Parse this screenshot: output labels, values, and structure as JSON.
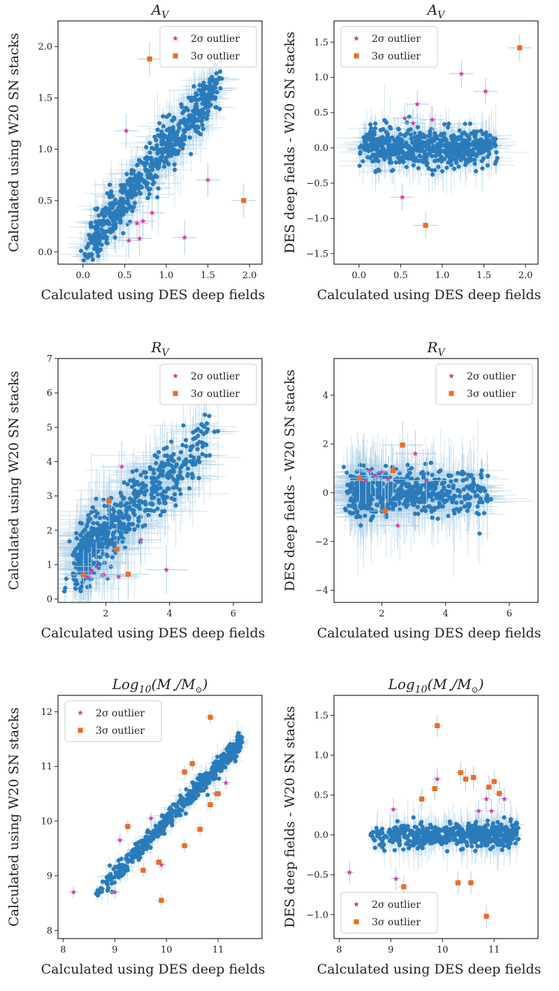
{
  "colors": {
    "blue": "#2b7bba",
    "errorbar": "#a9cde6",
    "outlier2": "#d63fa6",
    "outlier3": "#ef6c1f",
    "axes": "#222222"
  },
  "legend_entries": [
    {
      "marker": "star",
      "label": "2σ outlier"
    },
    {
      "marker": "square",
      "label": "3σ outlier"
    }
  ],
  "chart_data": [
    {
      "type": "scatter",
      "title": "A_V",
      "xlabel": "Calculated using DES deep fields",
      "ylabel": "Calculated using W20 SN stacks",
      "xlim": [
        -0.3,
        2.15
      ],
      "ylim": [
        -0.12,
        2.25
      ],
      "xticks": [
        0.0,
        0.5,
        1.0,
        1.5,
        2.0
      ],
      "xtick_labels": [
        "0.0",
        "0.5",
        "1.0",
        "1.5",
        "2.0"
      ],
      "yticks": [
        0.0,
        0.5,
        1.0,
        1.5,
        2.0
      ],
      "ytick_labels": [
        "0.0",
        "0.5",
        "1.0",
        "1.5",
        "2.0"
      ],
      "legend_position": "top-right",
      "cloud": {
        "mode": "diag",
        "n": 650,
        "xmin": 0.05,
        "xmax": 1.6,
        "shape": 1.0,
        "slope": 1.0,
        "intercept": 0.0,
        "scatter": 0.12,
        "xerr": 0.12,
        "yerr": 0.14,
        "seed": 11
      },
      "outliers_2sigma": [
        [
          0.52,
          1.18
        ],
        [
          0.83,
          0.38
        ],
        [
          1.5,
          0.7
        ],
        [
          0.68,
          0.13
        ],
        [
          0.55,
          0.11
        ],
        [
          1.22,
          0.14
        ],
        [
          0.65,
          0.28
        ],
        [
          0.72,
          0.3
        ]
      ],
      "outliers_3sigma": [
        [
          0.8,
          1.88
        ],
        [
          1.93,
          0.5
        ]
      ]
    },
    {
      "type": "scatter",
      "title": "A_V",
      "xlabel": "Calculated using DES deep fields",
      "ylabel": "DES deep fields - W20 SN stacks",
      "xlim": [
        -0.3,
        2.15
      ],
      "ylim": [
        -1.65,
        1.8
      ],
      "xticks": [
        0.0,
        0.5,
        1.0,
        1.5,
        2.0
      ],
      "xtick_labels": [
        "0.0",
        "0.5",
        "1.0",
        "1.5",
        "2.0"
      ],
      "yticks": [
        -1.5,
        -1.0,
        -0.5,
        0.0,
        0.5,
        1.0,
        1.5
      ],
      "ytick_labels": [
        "−1.5",
        "−1.0",
        "−0.5",
        "0.0",
        "0.5",
        "1.0",
        "1.5"
      ],
      "legend_position": "top-left",
      "cloud": {
        "mode": "resid",
        "n": 650,
        "xmin": 0.05,
        "xmax": 1.6,
        "shape": 1.0,
        "scatter": 0.13,
        "xerr": 0.12,
        "yerr": 0.16,
        "seed": 23
      },
      "outliers_2sigma": [
        [
          1.23,
          1.05
        ],
        [
          0.7,
          0.62
        ],
        [
          1.52,
          0.8
        ],
        [
          0.55,
          0.42
        ],
        [
          0.88,
          0.4
        ],
        [
          0.52,
          -0.7
        ],
        [
          0.65,
          0.35
        ]
      ],
      "outliers_3sigma": [
        [
          1.93,
          1.42
        ],
        [
          0.8,
          -1.1
        ]
      ]
    },
    {
      "type": "scatter",
      "title": "R_V",
      "xlabel": "Calculated using DES deep fields",
      "ylabel": "Calculated using W20 SN stacks",
      "xlim": [
        0.5,
        6.9
      ],
      "ylim": [
        -0.1,
        7.0
      ],
      "xticks": [
        2,
        4,
        6
      ],
      "xtick_labels": [
        "2",
        "4",
        "6"
      ],
      "yticks": [
        0,
        1,
        2,
        3,
        4,
        5,
        6,
        7
      ],
      "ytick_labels": [
        "0",
        "1",
        "2",
        "3",
        "4",
        "5",
        "6",
        "7"
      ],
      "legend_position": "top-right",
      "cloud": {
        "mode": "diag",
        "n": 650,
        "xmin": 1.2,
        "xmax": 5.2,
        "shape": 1.9,
        "slope": 0.85,
        "intercept": 0.2,
        "scatter": 0.45,
        "xerr": 0.55,
        "yerr": 0.6,
        "seed": 37
      },
      "outliers_2sigma": [
        [
          2.5,
          3.85
        ],
        [
          3.1,
          1.72
        ],
        [
          1.55,
          0.8
        ],
        [
          1.7,
          0.95
        ],
        [
          1.95,
          0.7
        ],
        [
          3.9,
          0.85
        ],
        [
          2.4,
          0.65
        ],
        [
          1.45,
          0.62
        ]
      ],
      "outliers_3sigma": [
        [
          2.1,
          2.85
        ],
        [
          2.35,
          1.45
        ],
        [
          1.3,
          0.7
        ],
        [
          2.7,
          0.72
        ]
      ]
    },
    {
      "type": "scatter",
      "title": "R_V",
      "xlabel": "Calculated using DES deep fields",
      "ylabel": "DES deep fields - W20 SN stacks",
      "xlim": [
        0.5,
        6.9
      ],
      "ylim": [
        -4.5,
        5.5
      ],
      "xticks": [
        2,
        4,
        6
      ],
      "xtick_labels": [
        "2",
        "4",
        "6"
      ],
      "yticks": [
        -4,
        -2,
        0,
        2,
        4
      ],
      "ytick_labels": [
        "−4",
        "−2",
        "0",
        "2",
        "4"
      ],
      "legend_position": "top-right",
      "cloud": {
        "mode": "resid",
        "n": 650,
        "xmin": 1.2,
        "xmax": 5.2,
        "shape": 1.9,
        "scatter": 0.45,
        "xerr": 0.55,
        "yerr": 0.8,
        "seed": 53
      },
      "outliers_2sigma": [
        [
          1.5,
          0.5
        ],
        [
          2.5,
          -1.35
        ],
        [
          3.05,
          1.6
        ],
        [
          1.8,
          0.7
        ],
        [
          2.2,
          0.55
        ],
        [
          3.4,
          0.5
        ],
        [
          1.65,
          0.9
        ],
        [
          2.0,
          0.85
        ]
      ],
      "outliers_3sigma": [
        [
          1.3,
          0.6
        ],
        [
          2.65,
          1.95
        ],
        [
          2.1,
          -0.75
        ],
        [
          2.35,
          0.9
        ]
      ]
    },
    {
      "type": "scatter",
      "title": "Log_10(M_star/M_sun)",
      "xlabel": "Calculated using DES deep fields",
      "ylabel": "Calculated using W20 SN stacks",
      "xlim": [
        7.9,
        11.85
      ],
      "ylim": [
        7.85,
        12.3
      ],
      "xticks": [
        8,
        9,
        10,
        11
      ],
      "xtick_labels": [
        "8",
        "9",
        "10",
        "11"
      ],
      "yticks": [
        8,
        9,
        10,
        11,
        12
      ],
      "ytick_labels": [
        "8",
        "9",
        "10",
        "11",
        "12"
      ],
      "legend_position": "top-left",
      "cloud": {
        "mode": "diag",
        "n": 560,
        "xmin": 8.6,
        "xmax": 11.45,
        "shape": 0.7,
        "slope": 1.0,
        "intercept": 0.0,
        "scatter": 0.09,
        "xerr": 0.08,
        "yerr": 0.1,
        "seed": 71
      },
      "outliers_2sigma": [
        [
          8.2,
          8.7
        ],
        [
          9.1,
          9.65
        ],
        [
          9.9,
          9.2
        ],
        [
          11.15,
          10.7
        ],
        [
          9.7,
          10.05
        ],
        [
          10.95,
          10.5
        ],
        [
          9.0,
          8.7
        ]
      ],
      "outliers_3sigma": [
        [
          10.85,
          11.9
        ],
        [
          9.25,
          9.9
        ],
        [
          9.9,
          8.55
        ],
        [
          10.5,
          11.05
        ],
        [
          10.35,
          10.9
        ],
        [
          9.55,
          9.1
        ],
        [
          10.35,
          9.55
        ],
        [
          10.65,
          9.85
        ],
        [
          11.0,
          10.5
        ],
        [
          9.85,
          9.25
        ],
        [
          10.85,
          10.3
        ]
      ]
    },
    {
      "type": "scatter",
      "title": "Log_10(M_star/M_sun)",
      "xlabel": "Calculated using DES deep fields",
      "ylabel": "DES deep fields - W20 SN stacks",
      "xlim": [
        7.9,
        11.85
      ],
      "ylim": [
        -1.3,
        1.75
      ],
      "xticks": [
        8,
        9,
        10,
        11
      ],
      "xtick_labels": [
        "8",
        "9",
        "10",
        "11"
      ],
      "yticks": [
        -1.0,
        -0.5,
        0.0,
        0.5,
        1.0,
        1.5
      ],
      "ytick_labels": [
        "−1.0",
        "−0.5",
        "0.0",
        "0.5",
        "1.0",
        "1.5"
      ],
      "legend_position": "bottom-left",
      "cloud": {
        "mode": "resid",
        "n": 560,
        "xmin": 8.6,
        "xmax": 11.45,
        "shape": 0.7,
        "scatter": 0.08,
        "xerr": 0.08,
        "yerr": 0.12,
        "seed": 89
      },
      "outliers_2sigma": [
        [
          8.2,
          -0.47
        ],
        [
          9.05,
          0.32
        ],
        [
          9.1,
          -0.55
        ],
        [
          9.9,
          0.7
        ],
        [
          10.85,
          0.45
        ],
        [
          11.2,
          0.45
        ],
        [
          10.95,
          0.3
        ],
        [
          10.7,
          0.3
        ]
      ],
      "outliers_3sigma": [
        [
          9.9,
          1.37
        ],
        [
          9.6,
          0.45
        ],
        [
          10.35,
          0.78
        ],
        [
          10.45,
          0.7
        ],
        [
          10.6,
          0.72
        ],
        [
          10.9,
          0.6
        ],
        [
          11.0,
          0.67
        ],
        [
          11.1,
          0.52
        ],
        [
          9.25,
          -0.65
        ],
        [
          10.3,
          -0.6
        ],
        [
          10.55,
          -0.6
        ],
        [
          10.85,
          -1.02
        ],
        [
          9.85,
          0.58
        ]
      ]
    }
  ]
}
